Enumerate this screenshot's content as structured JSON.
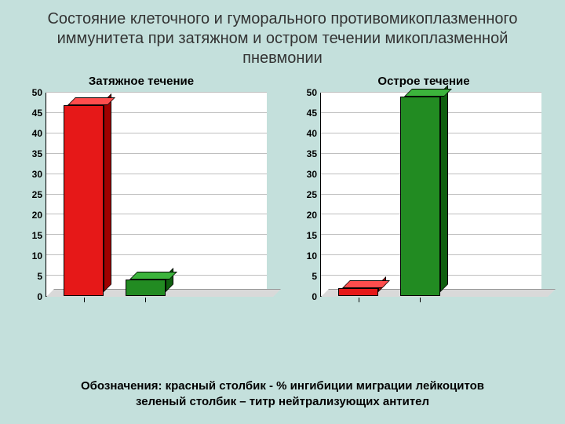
{
  "slide": {
    "background_color": "#c4e0dc",
    "title": "Состояние клеточного и гуморального противомикоплазменного иммунитета при затяжном и остром течении микоплазменной пневмонии",
    "title_color": "#333333",
    "title_fontsize": 20
  },
  "left_chart": {
    "type": "bar",
    "subtitle": "Затяжное течение",
    "subtitle_fontsize": 15,
    "ylim": [
      0,
      50
    ],
    "ytick_step": 5,
    "ytick_labels": [
      "0",
      "5",
      "10",
      "15",
      "20",
      "25",
      "30",
      "35",
      "40",
      "45",
      "50"
    ],
    "gridline_color": "#bfbfbf",
    "bars": [
      {
        "value": 47,
        "front": "#e61818",
        "top": "#ff4d4d",
        "side": "#a00000",
        "width_pct": 18,
        "x_pct": 8
      },
      {
        "value": 4,
        "front": "#228b22",
        "top": "#3cb43c",
        "side": "#0f5f0f",
        "width_pct": 18,
        "x_pct": 36
      }
    ],
    "floor_color": "#d9d9d9",
    "plot_bg": "#ffffff"
  },
  "right_chart": {
    "type": "bar",
    "subtitle": "Острое течение",
    "subtitle_fontsize": 15,
    "ylim": [
      0,
      50
    ],
    "ytick_step": 5,
    "ytick_labels": [
      "0",
      "5",
      "10",
      "15",
      "20",
      "25",
      "30",
      "35",
      "40",
      "45",
      "50"
    ],
    "gridline_color": "#bfbfbf",
    "bars": [
      {
        "value": 2,
        "front": "#e61818",
        "top": "#ff4d4d",
        "side": "#a00000",
        "width_pct": 18,
        "x_pct": 8
      },
      {
        "value": 49,
        "front": "#228b22",
        "top": "#3cb43c",
        "side": "#0f5f0f",
        "width_pct": 18,
        "x_pct": 36
      }
    ],
    "floor_color": "#d9d9d9",
    "plot_bg": "#ffffff"
  },
  "legend": {
    "line1": "Обозначения: красный столбик - % ингибиции миграции лейкоцитов",
    "line2": "зеленый столбик – титр нейтрализующих антител",
    "fontsize": 15
  }
}
